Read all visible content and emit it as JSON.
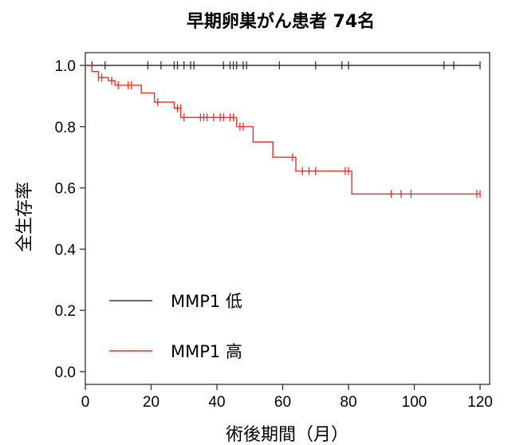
{
  "chart_data": {
    "type": "line",
    "subtype": "kaplan-meier",
    "title": "早期卵巣がん患者  74名",
    "xlabel": "術後期間（月）",
    "ylabel": "全生存率",
    "xlim": [
      0,
      120
    ],
    "ylim": [
      0.0,
      1.0
    ],
    "x_ticks": [
      0,
      20,
      40,
      60,
      80,
      100,
      120
    ],
    "y_ticks": [
      "0.0",
      "0.2",
      "0.4",
      "0.6",
      "0.8",
      "1.0"
    ],
    "grid": false,
    "legend_position": "bottom-left",
    "series": [
      {
        "name": "MMP1 低",
        "color": "#333333",
        "steps": [
          [
            0,
            1.0
          ],
          [
            120,
            1.0
          ]
        ],
        "censored": [
          [
            2,
            1.0
          ],
          [
            6,
            1.0
          ],
          [
            19,
            1.0
          ],
          [
            23,
            1.0
          ],
          [
            27,
            1.0
          ],
          [
            28,
            1.0
          ],
          [
            30,
            1.0
          ],
          [
            32,
            1.0
          ],
          [
            33,
            1.0
          ],
          [
            42,
            1.0
          ],
          [
            44,
            1.0
          ],
          [
            45,
            1.0
          ],
          [
            46,
            1.0
          ],
          [
            48,
            1.0
          ],
          [
            49,
            1.0
          ],
          [
            59,
            1.0
          ],
          [
            70,
            1.0
          ],
          [
            78,
            1.0
          ],
          [
            80,
            1.0
          ],
          [
            109,
            1.0
          ],
          [
            112,
            1.0
          ],
          [
            120,
            1.0
          ]
        ]
      },
      {
        "name": "MMP1 高",
        "color": "#e8302a",
        "steps": [
          [
            0,
            1.0
          ],
          [
            2,
            0.98
          ],
          [
            4,
            0.96
          ],
          [
            7,
            0.95
          ],
          [
            9,
            0.935
          ],
          [
            17,
            0.91
          ],
          [
            21,
            0.88
          ],
          [
            27,
            0.86
          ],
          [
            29,
            0.83
          ],
          [
            46,
            0.8
          ],
          [
            51,
            0.75
          ],
          [
            57,
            0.7
          ],
          [
            64,
            0.655
          ],
          [
            81,
            0.58
          ],
          [
            120,
            0.58
          ]
        ],
        "censored": [
          [
            4,
            0.96
          ],
          [
            5,
            0.96
          ],
          [
            8,
            0.95
          ],
          [
            10,
            0.935
          ],
          [
            13,
            0.935
          ],
          [
            14,
            0.935
          ],
          [
            22,
            0.88
          ],
          [
            28,
            0.86
          ],
          [
            29,
            0.86
          ],
          [
            30,
            0.83
          ],
          [
            35,
            0.83
          ],
          [
            36,
            0.83
          ],
          [
            37,
            0.83
          ],
          [
            39,
            0.83
          ],
          [
            41,
            0.83
          ],
          [
            42,
            0.83
          ],
          [
            44,
            0.83
          ],
          [
            45,
            0.83
          ],
          [
            47,
            0.8
          ],
          [
            48,
            0.8
          ],
          [
            63,
            0.7
          ],
          [
            66,
            0.655
          ],
          [
            68,
            0.655
          ],
          [
            70,
            0.655
          ],
          [
            79,
            0.655
          ],
          [
            80,
            0.655
          ],
          [
            93,
            0.58
          ],
          [
            96,
            0.58
          ],
          [
            99,
            0.58
          ],
          [
            119,
            0.58
          ],
          [
            120,
            0.58
          ]
        ]
      }
    ]
  }
}
